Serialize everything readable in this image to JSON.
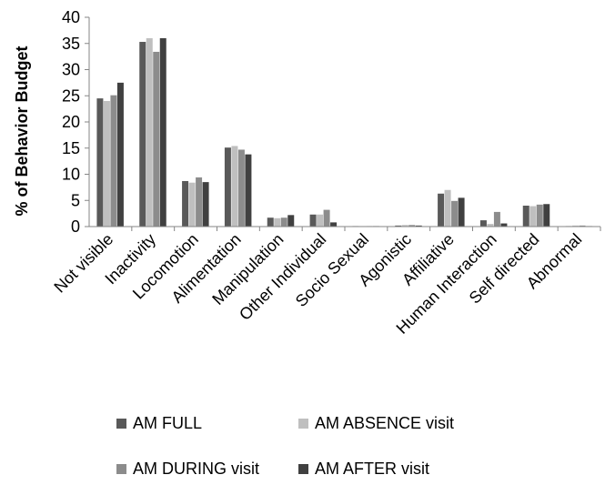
{
  "chart_data": {
    "type": "bar",
    "title": "",
    "xlabel": "",
    "ylabel": "% of Behavior Budget",
    "ylim": [
      0,
      40
    ],
    "yticks": [
      0,
      5,
      10,
      15,
      20,
      25,
      30,
      35,
      40
    ],
    "grid": false,
    "legend_position": "bottom",
    "categories": [
      "Not visible",
      "Inactivity",
      "Locomotion",
      "Alimentation",
      "Manipulation",
      "Other Individual",
      "Socio Sexual",
      "Agonistic",
      "Affiliative",
      "Human Interaction",
      "Self directed",
      "Abnormal"
    ],
    "series": [
      {
        "name": "AM FULL",
        "color": "#595959",
        "values": [
          24.5,
          35.3,
          8.7,
          15.1,
          1.7,
          2.3,
          0.1,
          0.2,
          6.3,
          1.2,
          4.0,
          0.1
        ]
      },
      {
        "name": "AM ABSENCE visit",
        "color": "#bfbfbf",
        "values": [
          24.0,
          36.0,
          8.4,
          15.4,
          1.6,
          2.3,
          0.1,
          0.3,
          7.0,
          0.5,
          3.9,
          0.2
        ]
      },
      {
        "name": "AM DURING visit",
        "color": "#8c8c8c",
        "values": [
          25.1,
          33.4,
          9.4,
          14.7,
          1.7,
          3.2,
          0.1,
          0.3,
          4.9,
          2.8,
          4.2,
          0.2
        ]
      },
      {
        "name": "AM AFTER visit",
        "color": "#404040",
        "values": [
          27.5,
          36.0,
          8.5,
          13.8,
          2.2,
          0.8,
          0.1,
          0.2,
          5.5,
          0.6,
          4.3,
          0.1
        ]
      }
    ]
  }
}
